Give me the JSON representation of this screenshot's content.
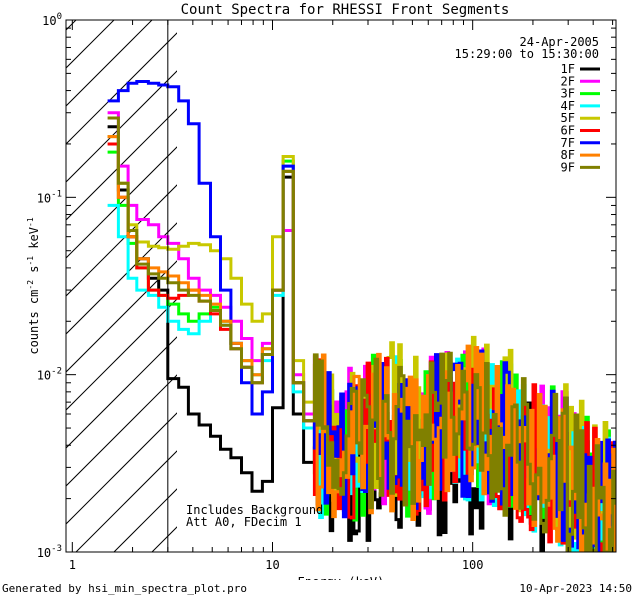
{
  "chart_data": {
    "type": "line",
    "title": "Count Spectra for RHESSI Front Segments",
    "xlabel": "Energy (keV)",
    "ylabel": {
      "base": "counts cm",
      "exp1": "-2",
      "mid1": " s",
      "exp2": "-1",
      "mid2": " keV",
      "exp3": "-1"
    },
    "xscale": "log",
    "yscale": "log",
    "xlim": [
      0.93,
      520
    ],
    "ylim": [
      0.001,
      1.0
    ],
    "x_ticks": [
      {
        "value": 1,
        "label": "1"
      },
      {
        "value": 10,
        "label": "10"
      },
      {
        "value": 100,
        "label": "100"
      }
    ],
    "y_ticks": [
      {
        "value": 0.001,
        "base": "10",
        "exp": "-3"
      },
      {
        "value": 0.01,
        "base": "10",
        "exp": "-2"
      },
      {
        "value": 0.1,
        "base": "10",
        "exp": "-1"
      },
      {
        "value": 1,
        "base": "10",
        "exp": "0"
      }
    ],
    "date": "24-Apr-2005",
    "time_range": "15:29:00 to 15:30:00",
    "annotations": [
      "Includes Background",
      "Att A0, FDecim 1"
    ],
    "hatched_region_kev": [
      0.93,
      3.0
    ],
    "legend_position": "top-right",
    "energy_edges_kev": [
      1.5,
      1.7,
      1.9,
      2.1,
      2.4,
      2.7,
      3.0,
      3.4,
      3.8,
      4.3,
      4.9,
      5.5,
      6.2,
      7.0,
      7.9,
      8.9,
      10.0,
      11.3,
      12.7,
      14.3,
      16.2,
      18.3,
      20.6,
      23.3,
      26.3,
      29.7,
      33.5,
      37.8,
      42.7,
      48.2,
      54.4,
      61.4,
      69.3,
      78.2,
      88.3,
      99.7,
      112.5,
      127.0,
      143.4,
      161.9,
      182.7,
      206.3,
      232.9,
      262.9,
      296.8,
      335.0,
      378.2,
      426.9,
      482.0,
      520.0
    ],
    "series": [
      {
        "name": "1F",
        "color": "#000000",
        "values": [
          0.25,
          0.11,
          0.06,
          0.045,
          0.035,
          0.03,
          0.0095,
          0.0085,
          0.006,
          0.0052,
          0.0045,
          0.0038,
          0.0034,
          0.0028,
          0.0022,
          0.0025,
          0.0065,
          0.13,
          0.006,
          0.0032,
          0.0028,
          0.0026,
          0.0025,
          0.0022,
          0.0024,
          0.0026,
          0.0028,
          0.003,
          0.0028,
          0.0025,
          0.0026,
          0.0028,
          0.003,
          0.0032,
          0.0034,
          0.0038,
          0.0036,
          0.0034,
          0.0032,
          0.0029,
          0.0027,
          0.0025,
          0.0023,
          0.0021,
          0.0019,
          0.0017,
          0.0015,
          0.0013,
          0.0012
        ]
      },
      {
        "name": "2F",
        "color": "#ff00ff",
        "values": [
          0.3,
          0.15,
          0.09,
          0.075,
          0.07,
          0.06,
          0.055,
          0.045,
          0.035,
          0.03,
          0.028,
          0.024,
          0.02,
          0.016,
          0.012,
          0.015,
          0.03,
          0.065,
          0.01,
          0.006,
          0.005,
          0.0045,
          0.004,
          0.0042,
          0.0046,
          0.005,
          0.0052,
          0.0048,
          0.0045,
          0.0043,
          0.0046,
          0.005,
          0.0055,
          0.006,
          0.0058,
          0.0055,
          0.0052,
          0.0048,
          0.0045,
          0.0042,
          0.0038,
          0.0035,
          0.0032,
          0.0029,
          0.0026,
          0.0023,
          0.002,
          0.0018,
          0.0016
        ]
      },
      {
        "name": "3F",
        "color": "#00ff00",
        "values": [
          0.18,
          0.09,
          0.055,
          0.04,
          0.03,
          0.028,
          0.025,
          0.022,
          0.02,
          0.022,
          0.024,
          0.02,
          0.015,
          0.012,
          0.01,
          0.014,
          0.03,
          0.16,
          0.009,
          0.0055,
          0.0048,
          0.0042,
          0.0038,
          0.004,
          0.0043,
          0.0046,
          0.005,
          0.0047,
          0.0044,
          0.0042,
          0.0045,
          0.005,
          0.0054,
          0.0058,
          0.0056,
          0.0053,
          0.005,
          0.0047,
          0.0044,
          0.004,
          0.0037,
          0.0034,
          0.0031,
          0.0028,
          0.0025,
          0.0022,
          0.002,
          0.0018,
          0.0016
        ]
      },
      {
        "name": "4F",
        "color": "#00ffff",
        "values": [
          0.09,
          0.06,
          0.035,
          0.03,
          0.028,
          0.024,
          0.02,
          0.018,
          0.017,
          0.02,
          0.023,
          0.019,
          0.014,
          0.011,
          0.009,
          0.012,
          0.028,
          0.15,
          0.008,
          0.005,
          0.0044,
          0.004,
          0.0036,
          0.0038,
          0.0041,
          0.0044,
          0.0048,
          0.0045,
          0.0042,
          0.004,
          0.0043,
          0.0047,
          0.0051,
          0.0055,
          0.0053,
          0.005,
          0.0047,
          0.0044,
          0.0041,
          0.0038,
          0.0035,
          0.0032,
          0.0029,
          0.0026,
          0.0023,
          0.0021,
          0.0019,
          0.0017,
          0.0015
        ]
      },
      {
        "name": "5F",
        "color": "#c8c800",
        "values": [
          0.22,
          0.12,
          0.07,
          0.056,
          0.053,
          0.052,
          0.051,
          0.053,
          0.055,
          0.054,
          0.05,
          0.045,
          0.035,
          0.025,
          0.02,
          0.022,
          0.06,
          0.17,
          0.012,
          0.007,
          0.0058,
          0.005,
          0.0046,
          0.0048,
          0.0052,
          0.0056,
          0.006,
          0.0057,
          0.0054,
          0.0052,
          0.0055,
          0.006,
          0.0065,
          0.007,
          0.0068,
          0.0064,
          0.006,
          0.0056,
          0.0052,
          0.0048,
          0.0044,
          0.004,
          0.0036,
          0.0032,
          0.0029,
          0.0026,
          0.0023,
          0.0021,
          0.0019
        ]
      },
      {
        "name": "6F",
        "color": "#ff0000",
        "values": [
          0.2,
          0.1,
          0.06,
          0.04,
          0.03,
          0.028,
          0.027,
          0.028,
          0.03,
          0.026,
          0.022,
          0.018,
          0.014,
          0.011,
          0.009,
          0.013,
          0.03,
          0.14,
          0.009,
          0.0055,
          0.0047,
          0.0042,
          0.0038,
          0.004,
          0.0043,
          0.0046,
          0.0049,
          0.0046,
          0.0043,
          0.0041,
          0.0044,
          0.0048,
          0.0052,
          0.0056,
          0.0054,
          0.0051,
          0.0048,
          0.0045,
          0.0042,
          0.0039,
          0.0036,
          0.0033,
          0.003,
          0.0027,
          0.0024,
          0.0022,
          0.002,
          0.0018,
          0.0016
        ]
      },
      {
        "name": "7F",
        "color": "#0000ff",
        "values": [
          0.35,
          0.4,
          0.44,
          0.45,
          0.44,
          0.43,
          0.42,
          0.35,
          0.26,
          0.12,
          0.06,
          0.03,
          0.015,
          0.009,
          0.006,
          0.008,
          0.03,
          0.15,
          0.009,
          0.0055,
          0.0047,
          0.0042,
          0.0038,
          0.004,
          0.0043,
          0.0046,
          0.0049,
          0.0046,
          0.0043,
          0.0041,
          0.0044,
          0.0048,
          0.0052,
          0.0056,
          0.0054,
          0.0051,
          0.0048,
          0.0045,
          0.0042,
          0.0039,
          0.0036,
          0.0033,
          0.003,
          0.0027,
          0.0024,
          0.0022,
          0.002,
          0.0018,
          0.0016
        ]
      },
      {
        "name": "8F",
        "color": "#ff8000",
        "values": [
          0.22,
          0.1,
          0.06,
          0.045,
          0.04,
          0.038,
          0.036,
          0.033,
          0.03,
          0.028,
          0.025,
          0.02,
          0.015,
          0.012,
          0.01,
          0.014,
          0.03,
          0.14,
          0.009,
          0.0055,
          0.0047,
          0.0042,
          0.0038,
          0.004,
          0.0043,
          0.0046,
          0.0049,
          0.0046,
          0.0043,
          0.0041,
          0.0044,
          0.0048,
          0.0052,
          0.0056,
          0.0054,
          0.0051,
          0.0048,
          0.0045,
          0.0042,
          0.0039,
          0.0036,
          0.0033,
          0.003,
          0.0027,
          0.0024,
          0.0022,
          0.002,
          0.0018,
          0.0016
        ]
      },
      {
        "name": "9F",
        "color": "#808000",
        "values": [
          0.28,
          0.12,
          0.065,
          0.042,
          0.037,
          0.035,
          0.033,
          0.03,
          0.028,
          0.026,
          0.023,
          0.019,
          0.014,
          0.011,
          0.009,
          0.013,
          0.03,
          0.14,
          0.009,
          0.0055,
          0.0047,
          0.0042,
          0.0038,
          0.004,
          0.0043,
          0.0046,
          0.0049,
          0.0046,
          0.0043,
          0.0041,
          0.0044,
          0.0048,
          0.0052,
          0.0056,
          0.0054,
          0.0051,
          0.0048,
          0.0045,
          0.0042,
          0.0039,
          0.0036,
          0.0033,
          0.003,
          0.0027,
          0.0024,
          0.0022,
          0.002,
          0.0018,
          0.0016
        ]
      }
    ]
  },
  "footer": {
    "left": "Generated by hsi_min_spectra_plot.pro",
    "right": "10-Apr-2023 14:50"
  }
}
